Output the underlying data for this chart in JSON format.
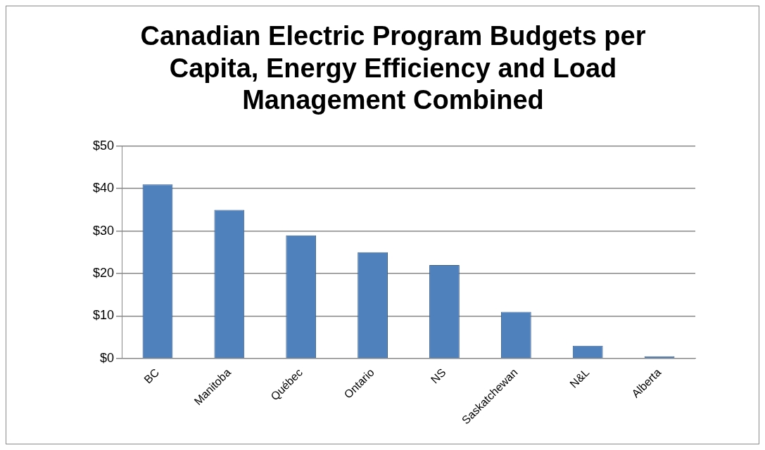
{
  "chart_data": {
    "type": "bar",
    "title": "Canadian Electric Program Budgets per Capita, Energy Efficiency and Load Management Combined",
    "categories": [
      "BC",
      "Manitoba",
      "Québec",
      "Ontario",
      "NS",
      "Saskatchewan",
      "N&L",
      "Alberta"
    ],
    "values": [
      41,
      35,
      29,
      25,
      22,
      11,
      3,
      0.5
    ],
    "color": "#4f81bd",
    "ylim": [
      0,
      50
    ],
    "yticks": [
      {
        "value": 0,
        "label": "$0"
      },
      {
        "value": 10,
        "label": "$10"
      },
      {
        "value": 20,
        "label": "$20"
      },
      {
        "value": 30,
        "label": "$30"
      },
      {
        "value": 40,
        "label": "$40"
      },
      {
        "value": 50,
        "label": "$50"
      }
    ],
    "grid": "y",
    "legend": false
  }
}
